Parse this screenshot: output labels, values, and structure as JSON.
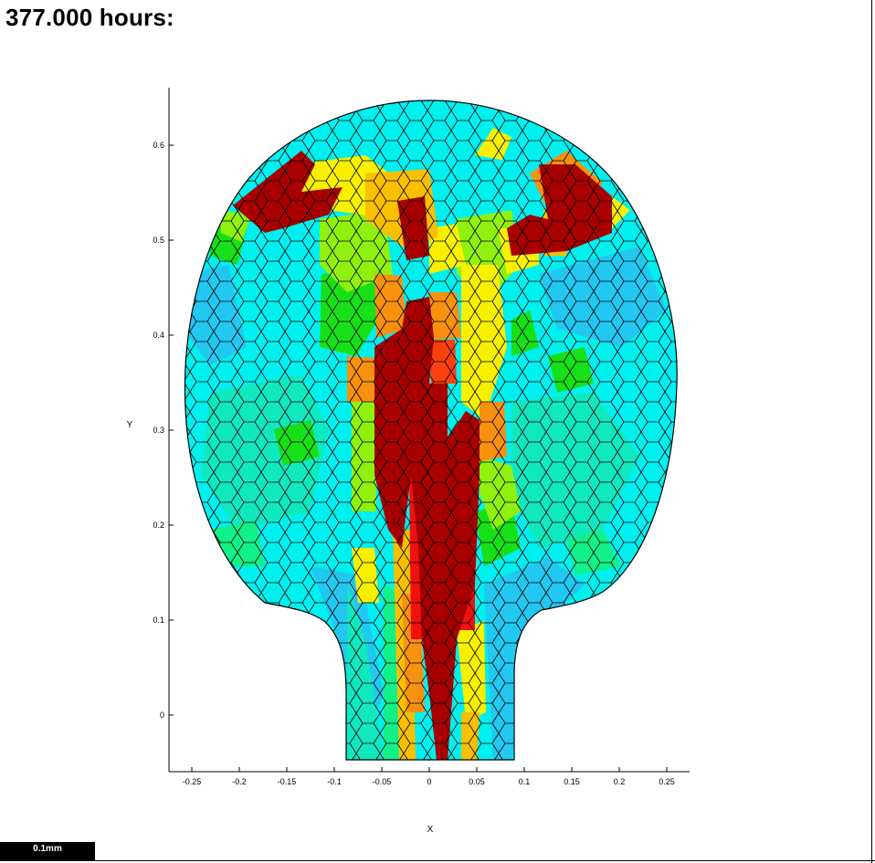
{
  "title": "377.000 hours:",
  "scale_bar_label": "0.1mm",
  "axes": {
    "xlabel": "X",
    "ylabel": "Y",
    "x_ticks": [
      "-0.25",
      "-0.2",
      "-0.15",
      "-0.1",
      "-0.05",
      "0",
      "0.05",
      "0.1",
      "0.15",
      "0.2",
      "0.25"
    ],
    "y_ticks": [
      "0",
      "0.1",
      "0.2",
      "0.3",
      "0.4",
      "0.5",
      "0.6"
    ],
    "xlim": [
      -0.275,
      0.275
    ],
    "ylim": [
      -0.05,
      0.66
    ]
  },
  "colors": {
    "cyan": "#00f0f0",
    "sky": "#22c8f0",
    "aqua_green": "#10e8c0",
    "spring": "#12f08a",
    "green": "#18e018",
    "lime": "#90f010",
    "yellow": "#f8f000",
    "amber": "#f8c000",
    "orange": "#f89010",
    "red_orange": "#f84010",
    "red": "#f01010",
    "dark_red": "#a80000"
  }
}
